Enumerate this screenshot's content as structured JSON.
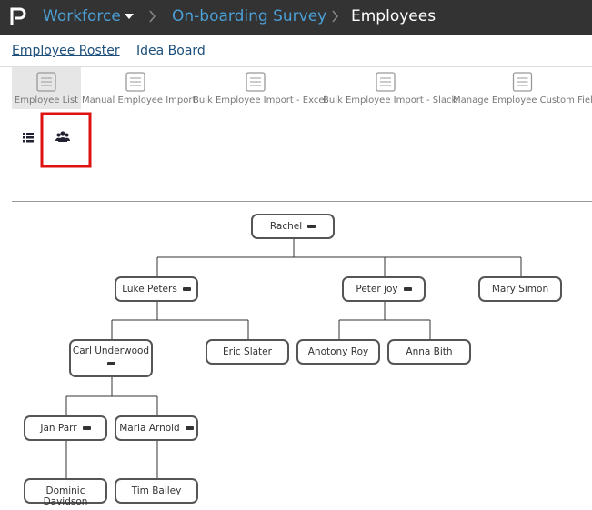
{
  "header": {
    "breadcrumb": [
      "Workforce",
      "On-boarding Survey",
      "Employees"
    ]
  },
  "tabs": [
    "Employee Roster",
    "Idea Board"
  ],
  "toolbar": [
    "Employee List",
    "Manual Employee Import",
    "Bulk Employee Import - Excel",
    "Bulk Employee Import - Slack",
    "Manage Employee Custom Fields"
  ],
  "org_chart": {
    "nodes": [
      {
        "label": "Rachel"
      },
      {
        "label": "Luke Peters"
      },
      {
        "label": "Peter joy"
      },
      {
        "label": "Mary Simon"
      },
      {
        "label": "Carl Underwood"
      },
      {
        "label": "Eric Slater"
      },
      {
        "label": "Anotony Roy"
      },
      {
        "label": "Anna Bith"
      },
      {
        "label": "Jan Parr"
      },
      {
        "label": "Maria Arnold"
      },
      {
        "label": "Dominic Davidson"
      },
      {
        "label": "Tim Bailey"
      }
    ]
  }
}
